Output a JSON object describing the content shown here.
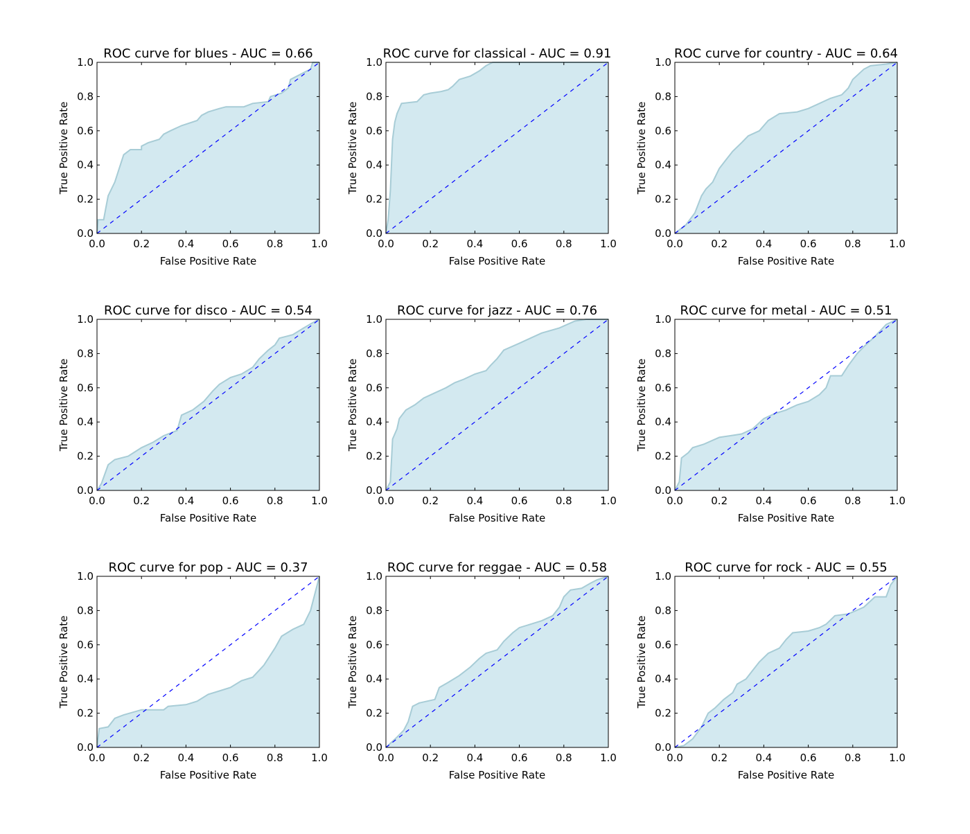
{
  "colors": {
    "fill": "#d3e9f0",
    "curve": "#a7ccd6",
    "diagonal": "#0000ff",
    "axes": "#000000"
  },
  "chart_data": [
    {
      "type": "area",
      "title": "ROC curve for blues - AUC = 0.66",
      "xlabel": "False Positive Rate",
      "ylabel": "True Positive Rate",
      "xlim": [
        0,
        1
      ],
      "ylim": [
        0,
        1
      ],
      "xticks": [
        "0.0",
        "0.2",
        "0.4",
        "0.6",
        "0.8",
        "1.0"
      ],
      "yticks": [
        "0.0",
        "0.2",
        "0.4",
        "0.6",
        "0.8",
        "1.0"
      ],
      "points": [
        [
          0,
          0
        ],
        [
          0.005,
          0.08
        ],
        [
          0.03,
          0.08
        ],
        [
          0.04,
          0.15
        ],
        [
          0.05,
          0.22
        ],
        [
          0.08,
          0.3
        ],
        [
          0.1,
          0.38
        ],
        [
          0.12,
          0.46
        ],
        [
          0.15,
          0.49
        ],
        [
          0.2,
          0.49
        ],
        [
          0.2,
          0.51
        ],
        [
          0.23,
          0.53
        ],
        [
          0.28,
          0.55
        ],
        [
          0.3,
          0.58
        ],
        [
          0.33,
          0.6
        ],
        [
          0.38,
          0.63
        ],
        [
          0.45,
          0.66
        ],
        [
          0.47,
          0.69
        ],
        [
          0.5,
          0.71
        ],
        [
          0.55,
          0.73
        ],
        [
          0.58,
          0.74
        ],
        [
          0.66,
          0.74
        ],
        [
          0.7,
          0.76
        ],
        [
          0.77,
          0.77
        ],
        [
          0.78,
          0.8
        ],
        [
          0.83,
          0.82
        ],
        [
          0.86,
          0.85
        ],
        [
          0.87,
          0.9
        ],
        [
          0.93,
          0.94
        ],
        [
          0.96,
          0.96
        ],
        [
          0.97,
          1
        ],
        [
          1,
          1
        ]
      ]
    },
    {
      "type": "area",
      "title": "ROC curve for classical - AUC = 0.91",
      "xlabel": "False Positive Rate",
      "ylabel": "True Positive Rate",
      "xlim": [
        0,
        1
      ],
      "ylim": [
        0,
        1
      ],
      "xticks": [
        "0.0",
        "0.2",
        "0.4",
        "0.6",
        "0.8",
        "1.0"
      ],
      "yticks": [
        "0.0",
        "0.2",
        "0.4",
        "0.6",
        "0.8",
        "1.0"
      ],
      "points": [
        [
          0,
          0
        ],
        [
          0.01,
          0.08
        ],
        [
          0.02,
          0.25
        ],
        [
          0.03,
          0.55
        ],
        [
          0.04,
          0.65
        ],
        [
          0.05,
          0.7
        ],
        [
          0.07,
          0.76
        ],
        [
          0.14,
          0.77
        ],
        [
          0.17,
          0.81
        ],
        [
          0.2,
          0.82
        ],
        [
          0.25,
          0.83
        ],
        [
          0.28,
          0.84
        ],
        [
          0.3,
          0.86
        ],
        [
          0.33,
          0.9
        ],
        [
          0.38,
          0.92
        ],
        [
          0.42,
          0.95
        ],
        [
          0.45,
          0.98
        ],
        [
          0.48,
          1
        ],
        [
          1,
          1
        ]
      ]
    },
    {
      "type": "area",
      "title": "ROC curve for country - AUC = 0.64",
      "xlabel": "False Positive Rate",
      "ylabel": "True Positive Rate",
      "xlim": [
        0,
        1
      ],
      "ylim": [
        0,
        1
      ],
      "xticks": [
        "0.0",
        "0.2",
        "0.4",
        "0.6",
        "0.8",
        "1.0"
      ],
      "yticks": [
        "0.0",
        "0.2",
        "0.4",
        "0.6",
        "0.8",
        "1.0"
      ],
      "points": [
        [
          0,
          0
        ],
        [
          0.05,
          0.05
        ],
        [
          0.09,
          0.12
        ],
        [
          0.12,
          0.22
        ],
        [
          0.14,
          0.26
        ],
        [
          0.17,
          0.3
        ],
        [
          0.2,
          0.38
        ],
        [
          0.23,
          0.43
        ],
        [
          0.26,
          0.48
        ],
        [
          0.3,
          0.53
        ],
        [
          0.33,
          0.57
        ],
        [
          0.38,
          0.6
        ],
        [
          0.42,
          0.66
        ],
        [
          0.47,
          0.7
        ],
        [
          0.55,
          0.71
        ],
        [
          0.6,
          0.73
        ],
        [
          0.65,
          0.76
        ],
        [
          0.7,
          0.79
        ],
        [
          0.75,
          0.81
        ],
        [
          0.78,
          0.85
        ],
        [
          0.8,
          0.9
        ],
        [
          0.85,
          0.96
        ],
        [
          0.88,
          0.98
        ],
        [
          0.95,
          0.99
        ],
        [
          1,
          1
        ]
      ]
    },
    {
      "type": "area",
      "title": "ROC curve for disco - AUC = 0.54",
      "xlabel": "False Positive Rate",
      "ylabel": "True Positive Rate",
      "xlim": [
        0,
        1
      ],
      "ylim": [
        0,
        1
      ],
      "xticks": [
        "0.0",
        "0.2",
        "0.4",
        "0.6",
        "0.8",
        "1.0"
      ],
      "yticks": [
        "0.0",
        "0.2",
        "0.4",
        "0.6",
        "0.8",
        "1.0"
      ],
      "points": [
        [
          0,
          0
        ],
        [
          0.02,
          0.04
        ],
        [
          0.05,
          0.15
        ],
        [
          0.08,
          0.18
        ],
        [
          0.14,
          0.2
        ],
        [
          0.2,
          0.25
        ],
        [
          0.25,
          0.28
        ],
        [
          0.3,
          0.32
        ],
        [
          0.36,
          0.35
        ],
        [
          0.38,
          0.44
        ],
        [
          0.43,
          0.47
        ],
        [
          0.48,
          0.52
        ],
        [
          0.52,
          0.58
        ],
        [
          0.55,
          0.62
        ],
        [
          0.6,
          0.66
        ],
        [
          0.65,
          0.68
        ],
        [
          0.7,
          0.72
        ],
        [
          0.73,
          0.77
        ],
        [
          0.77,
          0.82
        ],
        [
          0.8,
          0.85
        ],
        [
          0.82,
          0.89
        ],
        [
          0.88,
          0.91
        ],
        [
          0.93,
          0.95
        ],
        [
          0.97,
          0.98
        ],
        [
          1,
          1
        ]
      ]
    },
    {
      "type": "area",
      "title": "ROC curve for jazz - AUC = 0.76",
      "xlabel": "False Positive Rate",
      "ylabel": "True Positive Rate",
      "xlim": [
        0,
        1
      ],
      "ylim": [
        0,
        1
      ],
      "xticks": [
        "0.0",
        "0.2",
        "0.4",
        "0.6",
        "0.8",
        "1.0"
      ],
      "yticks": [
        "0.0",
        "0.2",
        "0.4",
        "0.6",
        "0.8",
        "1.0"
      ],
      "points": [
        [
          0,
          0
        ],
        [
          0.02,
          0.05
        ],
        [
          0.03,
          0.3
        ],
        [
          0.05,
          0.36
        ],
        [
          0.06,
          0.42
        ],
        [
          0.09,
          0.47
        ],
        [
          0.13,
          0.5
        ],
        [
          0.17,
          0.54
        ],
        [
          0.22,
          0.57
        ],
        [
          0.27,
          0.6
        ],
        [
          0.31,
          0.63
        ],
        [
          0.35,
          0.65
        ],
        [
          0.4,
          0.68
        ],
        [
          0.45,
          0.7
        ],
        [
          0.47,
          0.73
        ],
        [
          0.5,
          0.77
        ],
        [
          0.53,
          0.82
        ],
        [
          0.6,
          0.86
        ],
        [
          0.65,
          0.89
        ],
        [
          0.7,
          0.92
        ],
        [
          0.78,
          0.95
        ],
        [
          0.85,
          0.99
        ],
        [
          0.9,
          1
        ],
        [
          1,
          1
        ]
      ]
    },
    {
      "type": "area",
      "title": "ROC curve for metal - AUC = 0.51",
      "xlabel": "False Positive Rate",
      "ylabel": "True Positive Rate",
      "xlim": [
        0,
        1
      ],
      "ylim": [
        0,
        1
      ],
      "xticks": [
        "0.0",
        "0.2",
        "0.4",
        "0.6",
        "0.8",
        "1.0"
      ],
      "yticks": [
        "0.0",
        "0.2",
        "0.4",
        "0.6",
        "0.8",
        "1.0"
      ],
      "points": [
        [
          0,
          0
        ],
        [
          0.02,
          0.05
        ],
        [
          0.03,
          0.19
        ],
        [
          0.06,
          0.22
        ],
        [
          0.08,
          0.25
        ],
        [
          0.13,
          0.27
        ],
        [
          0.2,
          0.31
        ],
        [
          0.25,
          0.32
        ],
        [
          0.3,
          0.33
        ],
        [
          0.35,
          0.36
        ],
        [
          0.4,
          0.42
        ],
        [
          0.45,
          0.45
        ],
        [
          0.5,
          0.47
        ],
        [
          0.55,
          0.5
        ],
        [
          0.6,
          0.52
        ],
        [
          0.65,
          0.56
        ],
        [
          0.68,
          0.6
        ],
        [
          0.7,
          0.67
        ],
        [
          0.75,
          0.67
        ],
        [
          0.78,
          0.73
        ],
        [
          0.82,
          0.8
        ],
        [
          0.85,
          0.84
        ],
        [
          0.9,
          0.9
        ],
        [
          0.95,
          0.97
        ],
        [
          1,
          1
        ]
      ]
    },
    {
      "type": "area",
      "title": "ROC curve for pop - AUC = 0.37",
      "xlabel": "False Positive Rate",
      "ylabel": "True Positive Rate",
      "xlim": [
        0,
        1
      ],
      "ylim": [
        0,
        1
      ],
      "xticks": [
        "0.0",
        "0.2",
        "0.4",
        "0.6",
        "0.8",
        "1.0"
      ],
      "yticks": [
        "0.0",
        "0.2",
        "0.4",
        "0.6",
        "0.8",
        "1.0"
      ],
      "points": [
        [
          0,
          0
        ],
        [
          0.01,
          0.11
        ],
        [
          0.05,
          0.12
        ],
        [
          0.08,
          0.17
        ],
        [
          0.12,
          0.19
        ],
        [
          0.2,
          0.22
        ],
        [
          0.3,
          0.22
        ],
        [
          0.32,
          0.24
        ],
        [
          0.4,
          0.25
        ],
        [
          0.45,
          0.27
        ],
        [
          0.5,
          0.31
        ],
        [
          0.55,
          0.33
        ],
        [
          0.6,
          0.35
        ],
        [
          0.65,
          0.39
        ],
        [
          0.7,
          0.41
        ],
        [
          0.75,
          0.48
        ],
        [
          0.8,
          0.58
        ],
        [
          0.83,
          0.65
        ],
        [
          0.88,
          0.69
        ],
        [
          0.93,
          0.72
        ],
        [
          0.96,
          0.8
        ],
        [
          0.98,
          0.9
        ],
        [
          1,
          1
        ]
      ]
    },
    {
      "type": "area",
      "title": "ROC curve for reggae - AUC = 0.58",
      "xlabel": "False Positive Rate",
      "ylabel": "True Positive Rate",
      "xlim": [
        0,
        1
      ],
      "ylim": [
        0,
        1
      ],
      "xticks": [
        "0.0",
        "0.2",
        "0.4",
        "0.6",
        "0.8",
        "1.0"
      ],
      "yticks": [
        "0.0",
        "0.2",
        "0.4",
        "0.6",
        "0.8",
        "1.0"
      ],
      "points": [
        [
          0,
          0
        ],
        [
          0.05,
          0.06
        ],
        [
          0.08,
          0.1
        ],
        [
          0.1,
          0.15
        ],
        [
          0.12,
          0.24
        ],
        [
          0.15,
          0.26
        ],
        [
          0.22,
          0.28
        ],
        [
          0.24,
          0.35
        ],
        [
          0.28,
          0.38
        ],
        [
          0.33,
          0.42
        ],
        [
          0.38,
          0.47
        ],
        [
          0.42,
          0.52
        ],
        [
          0.45,
          0.55
        ],
        [
          0.5,
          0.57
        ],
        [
          0.53,
          0.62
        ],
        [
          0.57,
          0.67
        ],
        [
          0.6,
          0.7
        ],
        [
          0.65,
          0.72
        ],
        [
          0.7,
          0.74
        ],
        [
          0.75,
          0.77
        ],
        [
          0.78,
          0.82
        ],
        [
          0.8,
          0.88
        ],
        [
          0.83,
          0.92
        ],
        [
          0.88,
          0.93
        ],
        [
          0.92,
          0.96
        ],
        [
          0.95,
          0.98
        ],
        [
          1,
          1
        ]
      ]
    },
    {
      "type": "area",
      "title": "ROC curve for rock - AUC = 0.55",
      "xlabel": "False Positive Rate",
      "ylabel": "True Positive Rate",
      "xlim": [
        0,
        1
      ],
      "ylim": [
        0,
        1
      ],
      "xticks": [
        "0.0",
        "0.2",
        "0.4",
        "0.6",
        "0.8",
        "1.0"
      ],
      "yticks": [
        "0.0",
        "0.2",
        "0.4",
        "0.6",
        "0.8",
        "1.0"
      ],
      "points": [
        [
          0,
          0
        ],
        [
          0.04,
          0.01
        ],
        [
          0.08,
          0.05
        ],
        [
          0.12,
          0.12
        ],
        [
          0.15,
          0.2
        ],
        [
          0.18,
          0.23
        ],
        [
          0.22,
          0.28
        ],
        [
          0.26,
          0.32
        ],
        [
          0.28,
          0.37
        ],
        [
          0.32,
          0.4
        ],
        [
          0.35,
          0.45
        ],
        [
          0.38,
          0.5
        ],
        [
          0.42,
          0.55
        ],
        [
          0.47,
          0.58
        ],
        [
          0.5,
          0.63
        ],
        [
          0.53,
          0.67
        ],
        [
          0.6,
          0.68
        ],
        [
          0.65,
          0.7
        ],
        [
          0.68,
          0.72
        ],
        [
          0.72,
          0.77
        ],
        [
          0.78,
          0.78
        ],
        [
          0.85,
          0.82
        ],
        [
          0.9,
          0.88
        ],
        [
          0.95,
          0.88
        ],
        [
          0.97,
          0.95
        ],
        [
          1,
          1
        ]
      ]
    }
  ]
}
